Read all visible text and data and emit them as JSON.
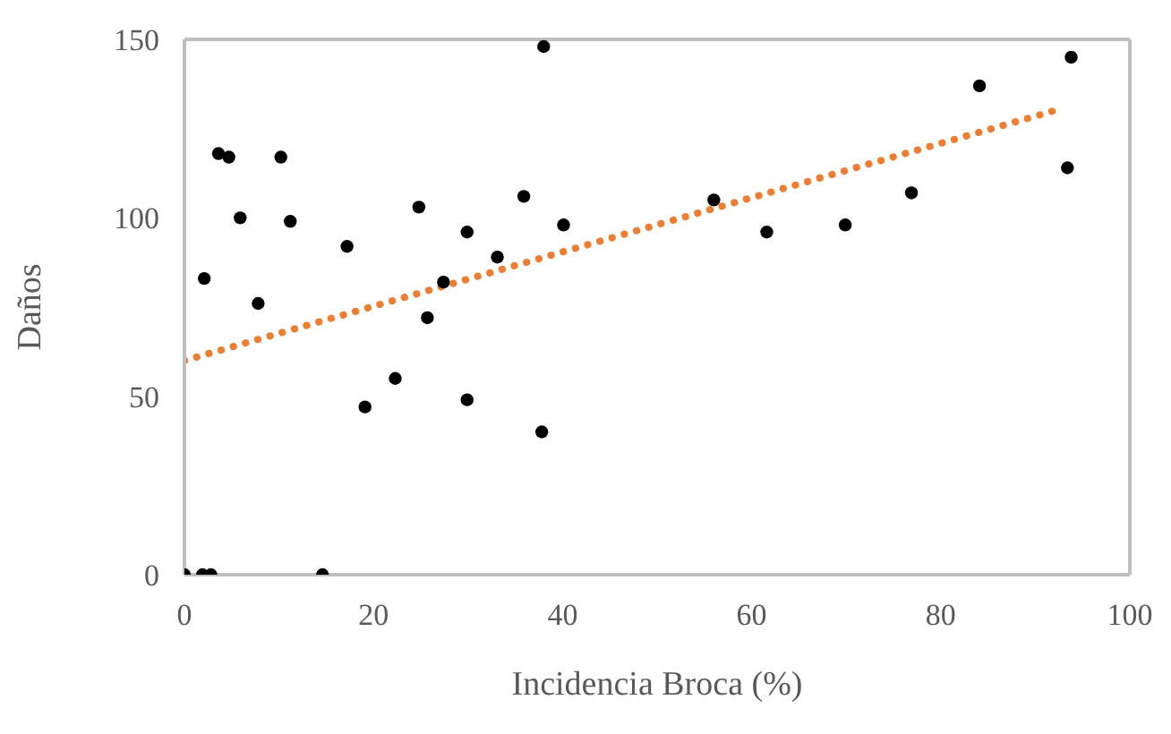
{
  "chart_data": {
    "type": "scatter",
    "xlabel": "Incidencia Broca (%)",
    "ylabel": "Daños",
    "xlim": [
      0,
      100
    ],
    "xticks": [
      0,
      20,
      40,
      60,
      80,
      100
    ],
    "ylim": [
      0,
      150
    ],
    "yticks": [
      0,
      50,
      100,
      150
    ],
    "grid": false,
    "series": [
      {
        "color": "#000000",
        "marker": "circle",
        "x": [
          0,
          1.9,
          2.8,
          14.6,
          2.1,
          3.6,
          4.7,
          5.9,
          7.8,
          10.2,
          11.2,
          17.2,
          19.1,
          22.3,
          24.8,
          25.7,
          27.4,
          29.9,
          29.9,
          33.1,
          35.9,
          37.8,
          38,
          40.1,
          56,
          61.6,
          69.9,
          76.9,
          84.1,
          93.8,
          93.4
        ],
        "values": [
          0,
          0,
          0,
          0,
          83,
          118,
          117,
          100,
          76,
          117,
          99,
          92,
          47,
          55,
          103,
          72,
          82,
          96,
          49,
          89,
          106,
          40,
          148,
          98,
          105,
          96,
          98,
          107,
          137,
          145,
          114
        ]
      },
      {
        "type": "line",
        "color": "#ed7d31",
        "line_style": "dotted",
        "marker": "none",
        "x": [
          0,
          92
        ],
        "values": [
          60,
          130
        ]
      }
    ]
  }
}
